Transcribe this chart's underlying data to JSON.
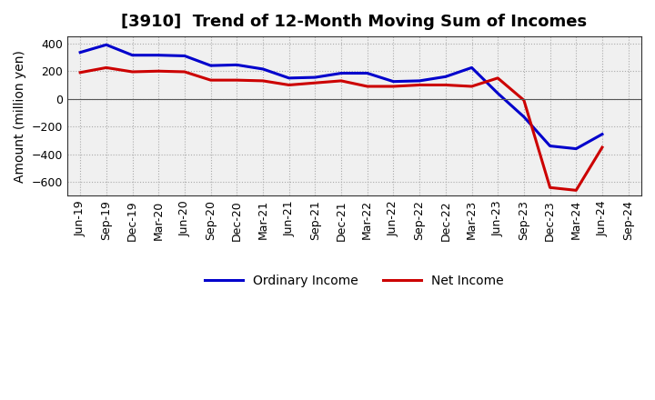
{
  "title": "[3910]  Trend of 12-Month Moving Sum of Incomes",
  "ylabel": "Amount (million yen)",
  "x_labels": [
    "Jun-19",
    "Sep-19",
    "Dec-19",
    "Mar-20",
    "Jun-20",
    "Sep-20",
    "Dec-20",
    "Mar-21",
    "Jun-21",
    "Sep-21",
    "Dec-21",
    "Mar-22",
    "Jun-22",
    "Sep-22",
    "Dec-22",
    "Mar-23",
    "Jun-23",
    "Sep-23",
    "Dec-23",
    "Mar-24",
    "Jun-24",
    "Sep-24"
  ],
  "ordinary_income": [
    335,
    390,
    315,
    315,
    310,
    240,
    245,
    215,
    150,
    155,
    185,
    185,
    125,
    130,
    160,
    225,
    40,
    -130,
    -340,
    -360,
    -255,
    null
  ],
  "net_income": [
    190,
    225,
    195,
    200,
    195,
    135,
    135,
    130,
    100,
    115,
    130,
    90,
    90,
    100,
    100,
    90,
    150,
    -10,
    -640,
    -660,
    -350,
    null
  ],
  "ordinary_income_color": "#0000cc",
  "net_income_color": "#cc0000",
  "background_color": "#ffffff",
  "plot_bg_color": "#f0f0f0",
  "grid_color": "#aaaaaa",
  "ylim": [
    -700,
    450
  ],
  "yticks": [
    -600,
    -400,
    -200,
    0,
    200,
    400
  ],
  "legend_labels": [
    "Ordinary Income",
    "Net Income"
  ],
  "line_width": 2.2,
  "title_fontsize": 13,
  "axis_fontsize": 10,
  "tick_fontsize": 9
}
